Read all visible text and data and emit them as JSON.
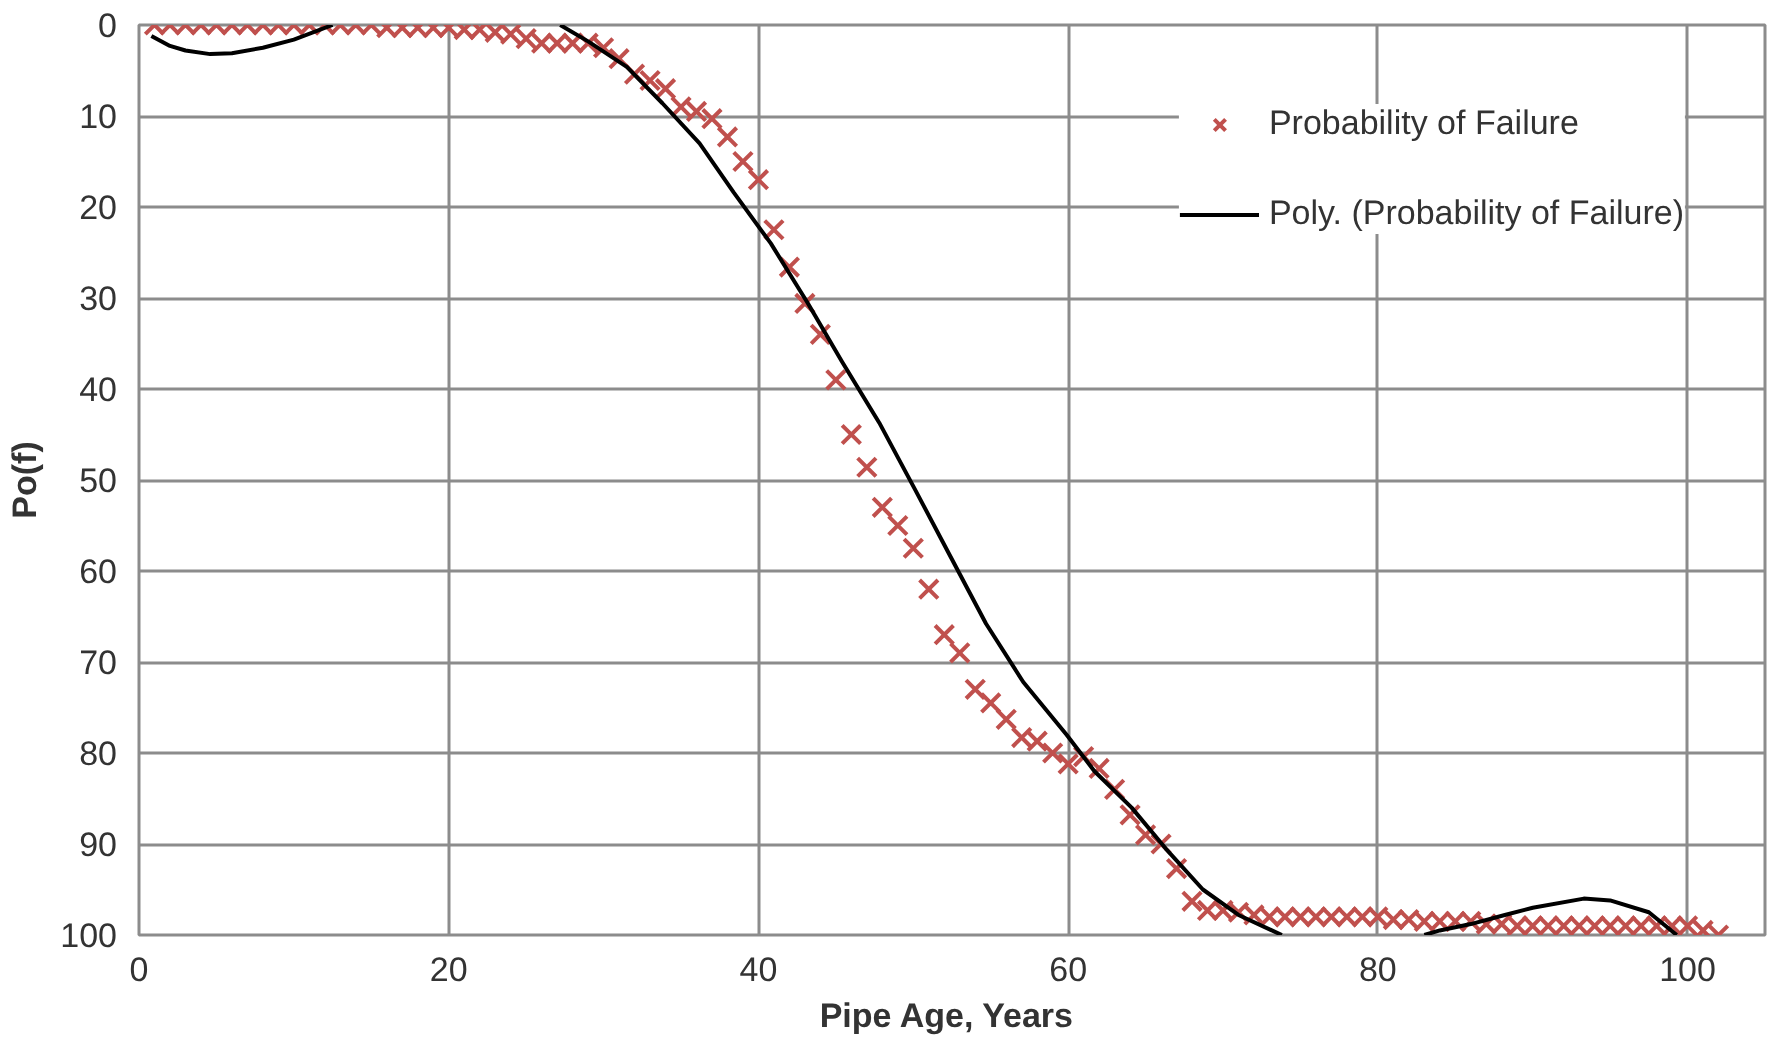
{
  "chart_data": {
    "type": "scatter",
    "xlabel": "Pipe Age,  Years",
    "ylabel": "Po(f)",
    "xlim": [
      0,
      105
    ],
    "ylim": [
      100,
      0
    ],
    "xticks": [
      0,
      20,
      40,
      60,
      80,
      100
    ],
    "yticks": [
      0,
      10,
      20,
      30,
      40,
      50,
      60,
      70,
      80,
      90,
      100
    ],
    "grid": true,
    "legend": "top right",
    "series": [
      {
        "name": "Probability of Failure",
        "marker": "cross",
        "color": "#c0504d",
        "x": [
          1,
          2,
          3,
          4,
          5,
          6,
          7,
          8,
          9,
          10,
          11,
          12,
          13,
          14,
          15,
          16,
          17,
          18,
          19,
          20,
          21,
          22,
          23,
          24,
          25,
          26,
          27,
          28,
          29,
          30,
          31,
          32,
          33,
          34,
          35,
          36,
          37,
          38,
          39,
          40,
          41,
          42,
          43,
          44,
          45,
          46,
          47,
          48,
          49,
          50,
          51,
          52,
          53,
          54,
          55,
          56,
          57,
          58,
          59,
          60,
          61,
          62,
          63,
          64,
          65,
          66,
          67,
          68,
          69,
          70,
          71,
          72,
          73,
          74,
          75,
          76,
          77,
          78,
          79,
          80,
          81,
          82,
          83,
          84,
          85,
          86,
          87,
          88,
          89,
          90,
          91,
          92,
          93,
          94,
          95,
          96,
          97,
          98,
          99,
          100,
          101,
          102
        ],
        "values": [
          0,
          0,
          0,
          0,
          0,
          0,
          0,
          0,
          0,
          0,
          0,
          0,
          0,
          0,
          0,
          0.3,
          0.3,
          0.3,
          0.3,
          0.3,
          0.5,
          0.5,
          0.8,
          1,
          1.5,
          2,
          2,
          2,
          2,
          2.5,
          3.7,
          5.4,
          6.1,
          7,
          9,
          9.5,
          10.3,
          12.3,
          15,
          17,
          22.5,
          26.6,
          30.6,
          34,
          39,
          45,
          48.6,
          53,
          55,
          57.5,
          62,
          67,
          69,
          73,
          74.5,
          76.3,
          78.3,
          78.7,
          80,
          81.2,
          80.4,
          81.7,
          84,
          86.8,
          89,
          90,
          92.7,
          96.3,
          97.3,
          97.3,
          97.5,
          97.8,
          98,
          98,
          98,
          98,
          98,
          98,
          98,
          98,
          98.3,
          98.3,
          98.5,
          98.5,
          98.5,
          98.5,
          98.8,
          98.8,
          99,
          99,
          99,
          99,
          99,
          99,
          99,
          99,
          99,
          99,
          99,
          99,
          99.5,
          100
        ]
      },
      {
        "name": "Poly. (Probability of Failure)",
        "type": "line",
        "color": "#000000",
        "line_style": "solid",
        "x": [
          0.8,
          2,
          3,
          4.6,
          6,
          8,
          10,
          12.5,
          13,
          27.2,
          29,
          31.5,
          33.8,
          36.2,
          38.4,
          40.8,
          43.2,
          45.4,
          47.8,
          50.1,
          52.4,
          54.7,
          57.1,
          59.9,
          61.7,
          64.1,
          66.3,
          68.7,
          71,
          73.8,
          74,
          83,
          84,
          86,
          88.2,
          90,
          93.3,
          95,
          97.5,
          99.3
        ],
        "values": [
          1.2,
          2.3,
          2.8,
          3.2,
          3.1,
          2.5,
          1.6,
          0,
          null,
          0,
          1.8,
          4.6,
          8.6,
          13,
          18.4,
          24,
          30.6,
          37,
          43.7,
          51,
          58.4,
          65.8,
          72.2,
          78,
          82,
          86,
          90.5,
          95,
          97.8,
          100,
          null,
          100,
          99.5,
          98.8,
          97.8,
          97,
          96,
          96.2,
          97.5,
          100
        ]
      }
    ]
  }
}
